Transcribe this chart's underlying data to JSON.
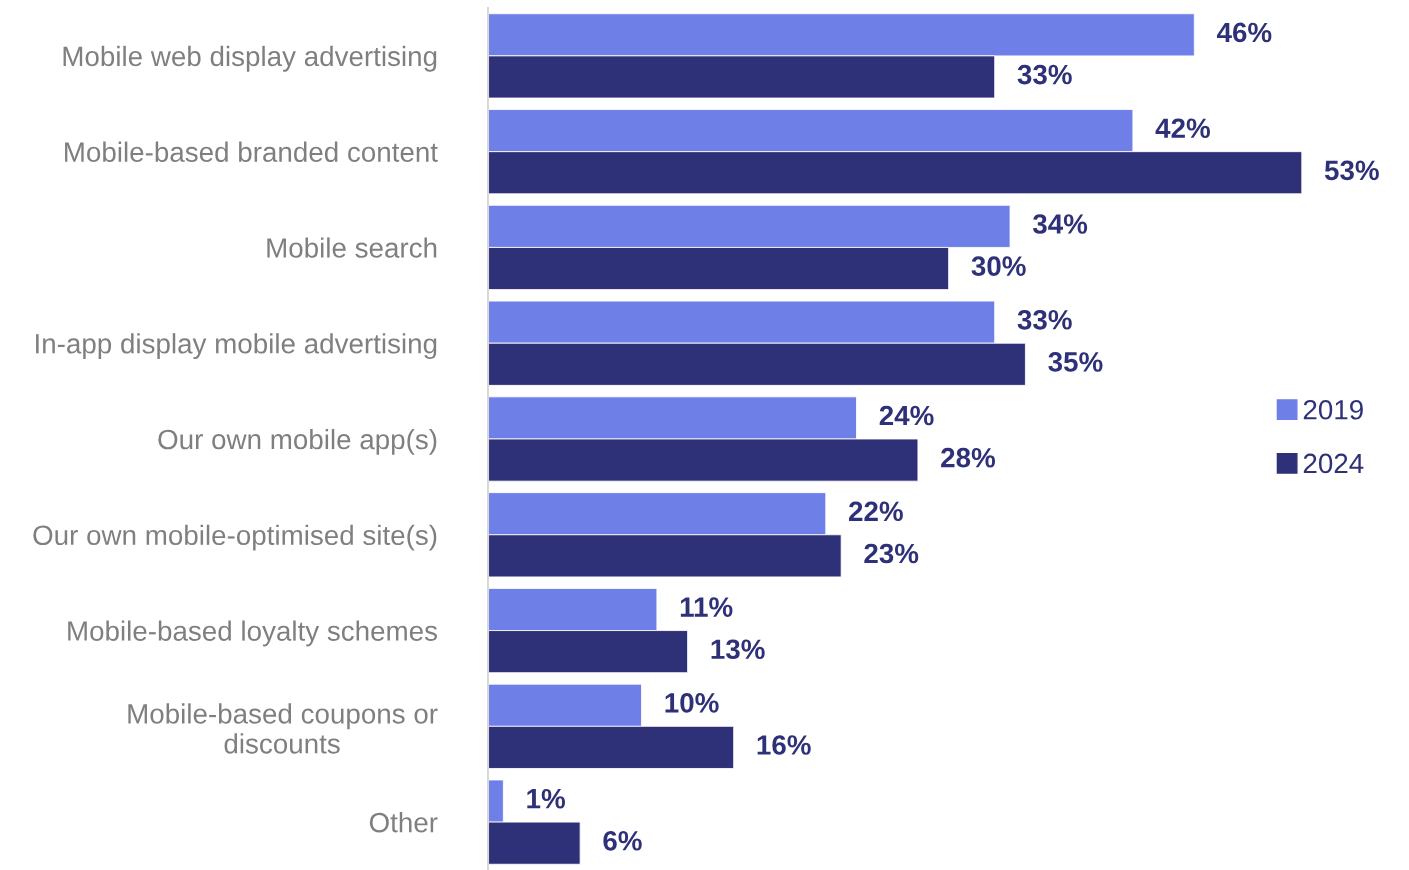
{
  "chart_data": {
    "type": "bar",
    "orientation": "horizontal",
    "categories": [
      "Mobile web display advertising",
      "Mobile-based branded content",
      "Mobile search",
      "In-app display mobile advertising",
      "Our own mobile app(s)",
      "Our own mobile-optimised site(s)",
      "Mobile-based loyalty schemes",
      "Mobile-based coupons or\ndiscounts",
      "Other"
    ],
    "series": [
      {
        "name": "2019",
        "color": "#6f7fe8",
        "values": [
          46,
          42,
          34,
          33,
          24,
          22,
          11,
          10,
          1
        ],
        "value_labels": [
          "46%",
          "42%",
          "34%",
          "33%",
          "24%",
          "22%",
          "11%",
          "10%",
          "1%"
        ]
      },
      {
        "name": "2024",
        "color": "#2e3177",
        "values": [
          33,
          53,
          30,
          35,
          28,
          23,
          13,
          16,
          6
        ],
        "value_labels": [
          "33%",
          "53%",
          "30%",
          "35%",
          "28%",
          "23%",
          "13%",
          "16%",
          "6%"
        ]
      }
    ],
    "legend": "right",
    "grid": false
  }
}
